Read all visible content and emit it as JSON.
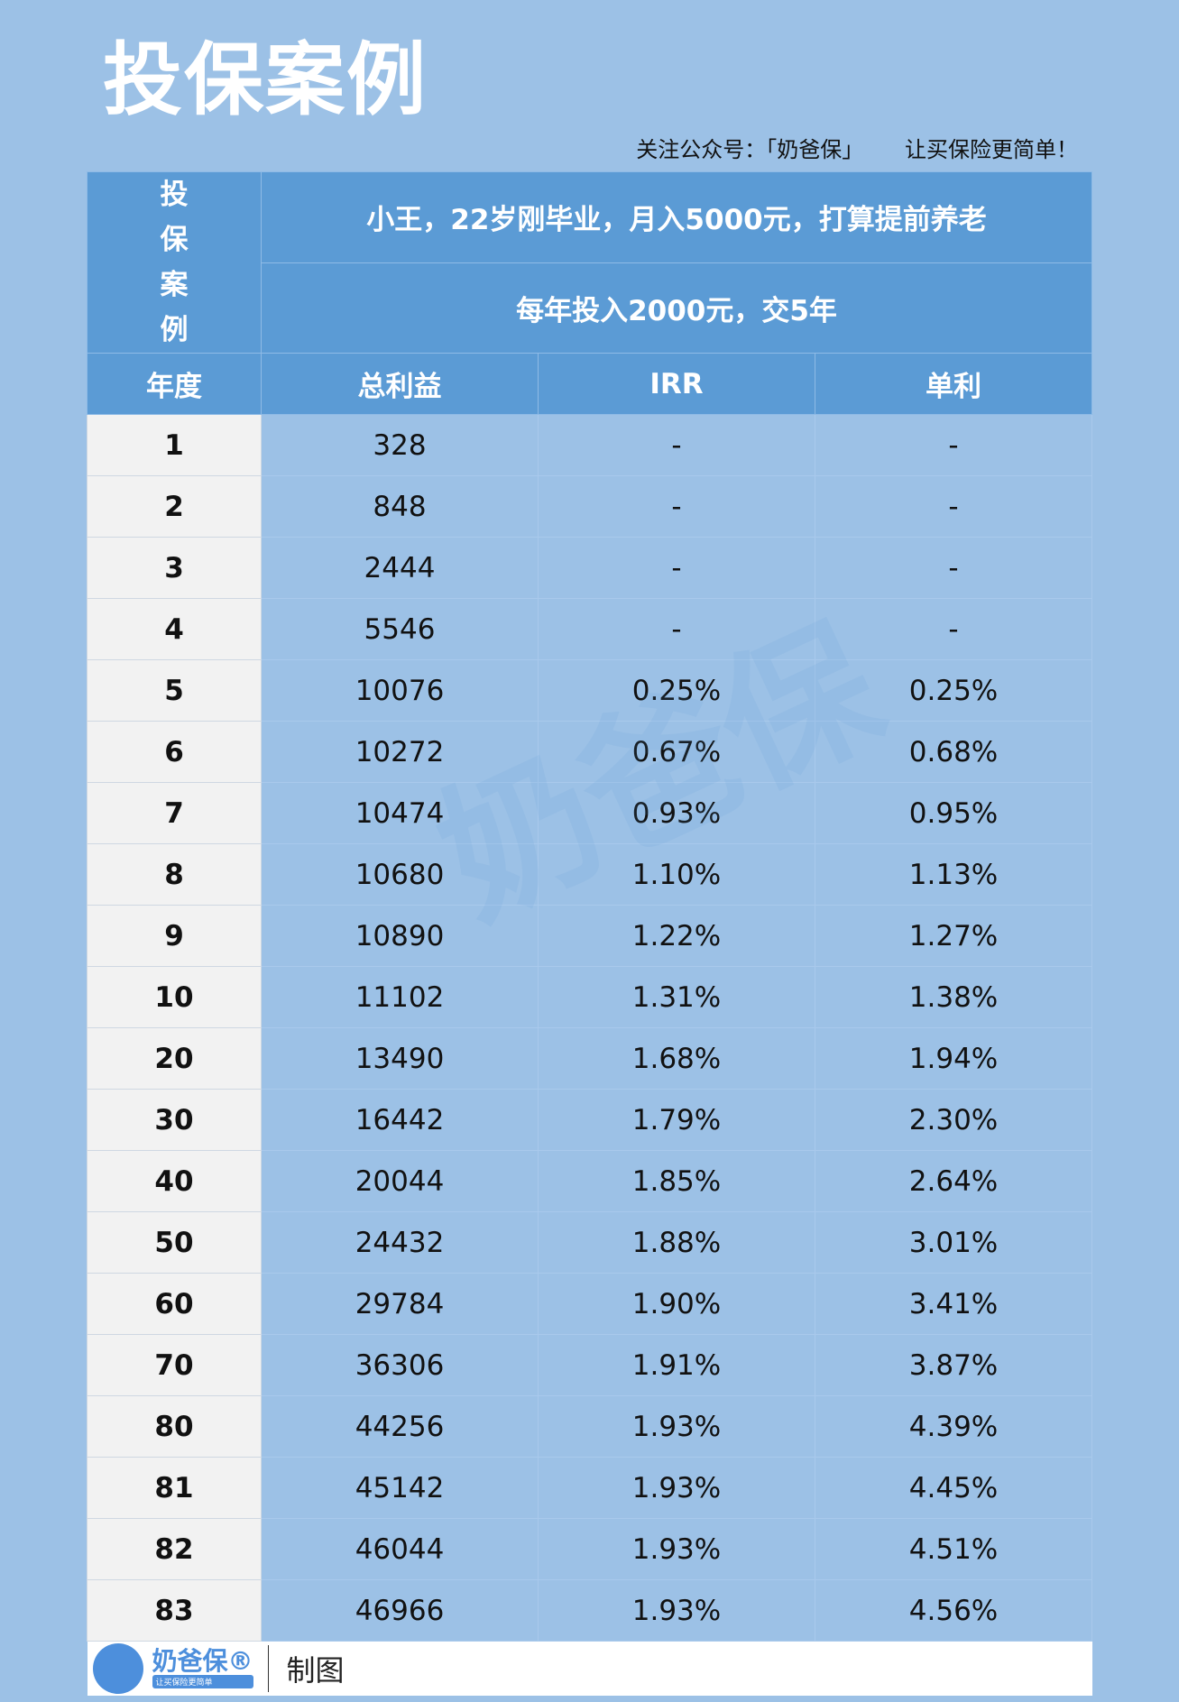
{
  "title": "投保案例",
  "subtitle": "关注公众号：「奶爸保」      让买保险更简单！",
  "case": {
    "label": "投保案例",
    "line1": "小王，22岁刚毕业，月入5000元，打算提前养老",
    "line2": "每年投入2000元，交5年"
  },
  "columns": [
    "年度",
    "总利益",
    "IRR",
    "单利"
  ],
  "rows": [
    [
      "1",
      "328",
      "-",
      "-"
    ],
    [
      "2",
      "848",
      "-",
      "-"
    ],
    [
      "3",
      "2444",
      "-",
      "-"
    ],
    [
      "4",
      "5546",
      "-",
      "-"
    ],
    [
      "5",
      "10076",
      "0.25%",
      "0.25%"
    ],
    [
      "6",
      "10272",
      "0.67%",
      "0.68%"
    ],
    [
      "7",
      "10474",
      "0.93%",
      "0.95%"
    ],
    [
      "8",
      "10680",
      "1.10%",
      "1.13%"
    ],
    [
      "9",
      "10890",
      "1.22%",
      "1.27%"
    ],
    [
      "10",
      "11102",
      "1.31%",
      "1.38%"
    ],
    [
      "20",
      "13490",
      "1.68%",
      "1.94%"
    ],
    [
      "30",
      "16442",
      "1.79%",
      "2.30%"
    ],
    [
      "40",
      "20044",
      "1.85%",
      "2.64%"
    ],
    [
      "50",
      "24432",
      "1.88%",
      "3.01%"
    ],
    [
      "60",
      "29784",
      "1.90%",
      "3.41%"
    ],
    [
      "70",
      "36306",
      "1.91%",
      "3.87%"
    ],
    [
      "80",
      "44256",
      "1.93%",
      "4.39%"
    ],
    [
      "81",
      "45142",
      "1.93%",
      "4.45%"
    ],
    [
      "82",
      "46044",
      "1.93%",
      "4.51%"
    ],
    [
      "83",
      "46966",
      "1.93%",
      "4.56%"
    ]
  ],
  "footer": {
    "brand": "奶爸保®",
    "slogan": "让买保险更简单",
    "made": "制图"
  },
  "watermark": "奶爸保",
  "colors": {
    "background": "#9cc1e6",
    "header": "#5b9bd5",
    "brand": "#4d8fdc"
  }
}
